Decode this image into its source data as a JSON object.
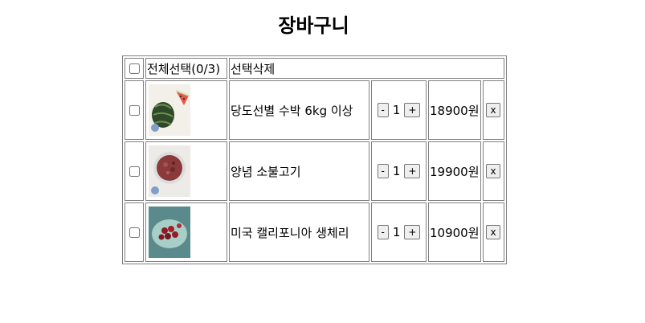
{
  "page": {
    "title": "장바구니"
  },
  "header": {
    "select_all_label": "전체선택(0/3)",
    "delete_selected_label": "선택삭제"
  },
  "items": [
    {
      "name": "당도선별 수박 6kg 이상",
      "quantity": "1",
      "price": "18900원",
      "image": "watermelon-image",
      "checked": false
    },
    {
      "name": "양념 소불고기",
      "quantity": "1",
      "price": "19900원",
      "image": "bulgogi-image",
      "checked": false
    },
    {
      "name": "미국 캘리포니아 생체리",
      "quantity": "1",
      "price": "10900원",
      "image": "cherry-image",
      "checked": false
    }
  ],
  "controls": {
    "decrease_label": "-",
    "increase_label": "+",
    "remove_label": "x"
  }
}
